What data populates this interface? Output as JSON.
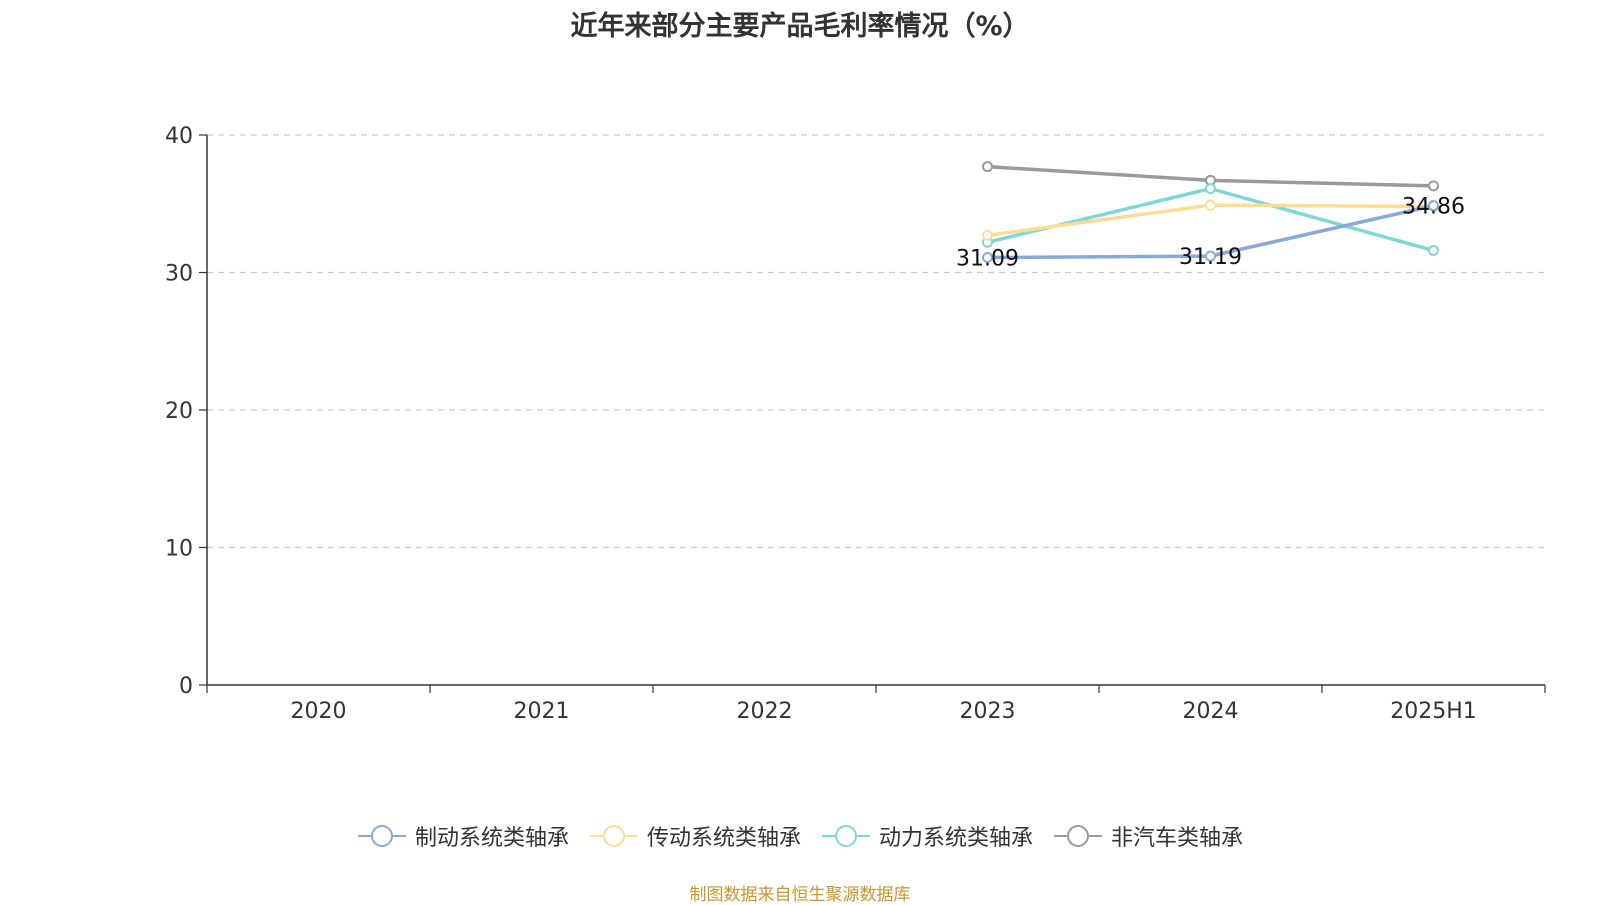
{
  "title": "近年来部分主要产品毛利率情况（%）",
  "source": "制图数据来自恒生聚源数据库",
  "chart_data": {
    "type": "line",
    "title": "近年来部分主要产品毛利率情况（%）",
    "categories": [
      "2020",
      "2021",
      "2022",
      "2023",
      "2024",
      "2025H1"
    ],
    "ylim": [
      0,
      40
    ],
    "yticks": [
      0,
      10,
      20,
      30,
      40
    ],
    "grid": true,
    "legend_position": "bottom",
    "series": [
      {
        "name": "制动系统类轴承",
        "color": "#8aa8d8",
        "values": [
          null,
          null,
          null,
          31.09,
          31.19,
          34.86
        ],
        "labels": [
          "",
          "",
          "",
          "31.09",
          "31.19",
          "34.86"
        ]
      },
      {
        "name": "传动系统类轴承",
        "color": "#fddc96",
        "values": [
          null,
          null,
          null,
          32.7,
          34.9,
          34.8
        ],
        "labels": []
      },
      {
        "name": "动力系统类轴承",
        "color": "#7fd6d6",
        "values": [
          null,
          null,
          null,
          32.2,
          36.1,
          31.6
        ],
        "labels": []
      },
      {
        "name": "非汽车类轴承",
        "color": "#9a9a9a",
        "values": [
          null,
          null,
          null,
          37.7,
          36.7,
          36.3
        ],
        "labels": []
      }
    ]
  }
}
